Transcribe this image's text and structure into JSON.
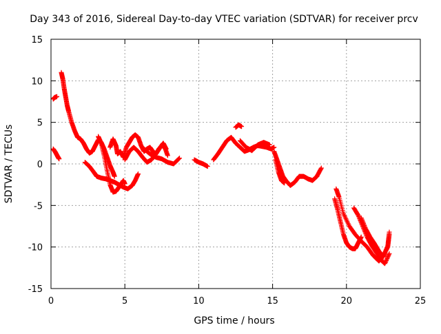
{
  "chart_data": {
    "type": "scatter",
    "title": "Day 343 of 2016, Sidereal Day-to-day VTEC variation (SDTVAR) for receiver prcv",
    "xlabel": "GPS time / hours",
    "ylabel": "SDTVAR / TECUs",
    "xlim": [
      0,
      25
    ],
    "ylim": [
      -15,
      15
    ],
    "xticks": [
      0,
      5,
      10,
      15,
      20,
      25
    ],
    "yticks": [
      -15,
      -10,
      -5,
      0,
      5,
      10,
      15
    ],
    "xtick_labels": [
      "0",
      "5",
      "10",
      "15",
      "20",
      "25"
    ],
    "ytick_labels": [
      "-15",
      "-10",
      "-5",
      "0",
      "5",
      "10",
      "15"
    ],
    "grid": true,
    "marker": "plus",
    "series": [
      {
        "name": "t1",
        "x": [
          0.15,
          0.25,
          0.4
        ],
        "y": [
          7.8,
          8.0,
          8.1
        ]
      },
      {
        "name": "t2",
        "x": [
          0.15,
          0.3,
          0.45,
          0.55
        ],
        "y": [
          1.8,
          1.4,
          0.9,
          0.6
        ]
      },
      {
        "name": "t3",
        "x": [
          0.7,
          0.8,
          0.9,
          1.0,
          1.1,
          1.2,
          1.4,
          1.6,
          1.8,
          2.0,
          2.2,
          2.4,
          2.6,
          2.8,
          3.0,
          3.2,
          3.4,
          3.6,
          3.8,
          4.0,
          4.2,
          4.3
        ],
        "y": [
          11.0,
          10.2,
          9.0,
          8.0,
          7.0,
          6.3,
          5.0,
          4.0,
          3.2,
          3.0,
          2.5,
          1.8,
          1.3,
          1.5,
          2.2,
          2.9,
          2.6,
          1.8,
          0.8,
          -0.2,
          -1.0,
          -1.5
        ]
      },
      {
        "name": "t4",
        "x": [
          2.3,
          2.6,
          2.9,
          3.1,
          3.4,
          3.7,
          4.0,
          4.3,
          4.6,
          4.9,
          5.2,
          5.5,
          5.7,
          5.9
        ],
        "y": [
          0.2,
          -0.3,
          -1.0,
          -1.5,
          -1.7,
          -1.8,
          -2.0,
          -2.2,
          -2.5,
          -2.8,
          -3.0,
          -2.6,
          -2.0,
          -1.2
        ]
      },
      {
        "name": "t5",
        "x": [
          3.2,
          3.4,
          3.6,
          3.8,
          4.0,
          4.2,
          4.4,
          4.6,
          4.8,
          4.9,
          5.0
        ],
        "y": [
          3.3,
          2.5,
          1.0,
          -0.8,
          -2.5,
          -3.4,
          -3.3,
          -2.8,
          -2.3,
          -2.0,
          -2.4
        ]
      },
      {
        "name": "t6",
        "x": [
          4.0,
          4.2,
          4.4,
          4.5,
          4.7,
          4.9,
          5.1,
          5.3,
          5.5,
          5.7,
          5.9,
          6.1,
          6.3,
          6.5,
          6.7,
          6.9,
          7.1,
          7.3,
          7.5,
          7.7,
          7.9
        ],
        "y": [
          2.0,
          3.0,
          2.2,
          1.2,
          1.5,
          0.8,
          2.0,
          2.6,
          3.2,
          3.5,
          3.2,
          2.2,
          1.5,
          1.8,
          2.0,
          1.5,
          1.2,
          1.8,
          2.2,
          2.0,
          1.0
        ]
      },
      {
        "name": "t7",
        "x": [
          5.0,
          5.3,
          5.6,
          5.9,
          6.2,
          6.5,
          6.8,
          7.1,
          7.4,
          7.6,
          7.8
        ],
        "y": [
          0.5,
          1.5,
          2.0,
          1.5,
          0.8,
          0.2,
          0.5,
          1.2,
          2.0,
          2.5,
          1.8
        ]
      },
      {
        "name": "t8",
        "x": [
          6.3,
          6.7,
          7.1,
          7.5,
          7.9,
          8.3,
          8.7
        ],
        "y": [
          1.8,
          1.2,
          0.8,
          0.6,
          0.2,
          0.0,
          0.7
        ]
      },
      {
        "name": "t9",
        "x": [
          9.7,
          10.0,
          10.3,
          10.6
        ],
        "y": [
          0.5,
          0.2,
          0.0,
          -0.3
        ]
      },
      {
        "name": "t10",
        "x": [
          11.0,
          11.3,
          11.6,
          11.9,
          12.2,
          12.5,
          12.8,
          13.1,
          13.4,
          13.7,
          14.0,
          14.3,
          14.6,
          14.9,
          15.1
        ],
        "y": [
          0.5,
          1.2,
          2.0,
          2.8,
          3.2,
          2.5,
          2.0,
          1.5,
          1.7,
          2.0,
          2.2,
          2.1,
          2.0,
          1.8,
          2.0
        ]
      },
      {
        "name": "t11",
        "x": [
          12.5,
          12.7,
          12.9
        ],
        "y": [
          4.4,
          4.7,
          4.5
        ]
      },
      {
        "name": "t12",
        "x": [
          12.8,
          13.2,
          13.6,
          14.0,
          14.4,
          14.8
        ],
        "y": [
          2.8,
          2.0,
          1.6,
          2.3,
          2.6,
          2.3
        ]
      },
      {
        "name": "t13",
        "x": [
          15.1,
          15.3,
          15.5,
          15.7,
          15.9,
          16.2,
          16.5,
          16.8,
          17.1,
          17.4,
          17.7,
          18.0,
          18.3
        ],
        "y": [
          1.5,
          0.5,
          -0.5,
          -1.5,
          -2.0,
          -2.6,
          -2.2,
          -1.5,
          -1.5,
          -1.8,
          -2.0,
          -1.5,
          -0.5
        ]
      },
      {
        "name": "t14",
        "x": [
          15.2,
          15.4,
          15.6,
          15.8
        ],
        "y": [
          0.5,
          -1.0,
          -2.0,
          -2.3
        ]
      },
      {
        "name": "t15",
        "x": [
          19.2,
          19.4,
          19.6,
          19.8,
          20.0,
          20.2,
          20.4,
          20.6,
          20.8,
          21.0
        ],
        "y": [
          -4.2,
          -5.5,
          -7.0,
          -8.5,
          -9.5,
          -10.0,
          -10.2,
          -10.2,
          -9.5,
          -8.8
        ]
      },
      {
        "name": "t16",
        "x": [
          19.3,
          19.5,
          19.8,
          20.2,
          20.6,
          21.0,
          21.4,
          21.8,
          22.2,
          22.5,
          22.8,
          22.9
        ],
        "y": [
          -3.0,
          -4.0,
          -6.0,
          -7.5,
          -8.5,
          -9.3,
          -10.0,
          -11.0,
          -11.7,
          -11.0,
          -10.0,
          -8.5
        ]
      },
      {
        "name": "t17",
        "x": [
          20.5,
          20.8,
          21.1,
          21.4,
          21.7,
          22.0,
          22.3,
          22.6,
          22.9
        ],
        "y": [
          -5.3,
          -6.2,
          -7.5,
          -8.8,
          -9.8,
          -10.6,
          -11.5,
          -12.0,
          -10.8
        ]
      },
      {
        "name": "t18",
        "x": [
          21.0,
          21.3,
          21.6,
          21.9,
          22.2,
          22.5,
          22.8,
          22.9
        ],
        "y": [
          -6.5,
          -7.8,
          -8.8,
          -9.6,
          -10.5,
          -11.2,
          -9.8,
          -8.2
        ]
      }
    ]
  },
  "colors": {
    "series": "#ff0000",
    "frame": "#000000",
    "grid": "#a0a0a0"
  }
}
